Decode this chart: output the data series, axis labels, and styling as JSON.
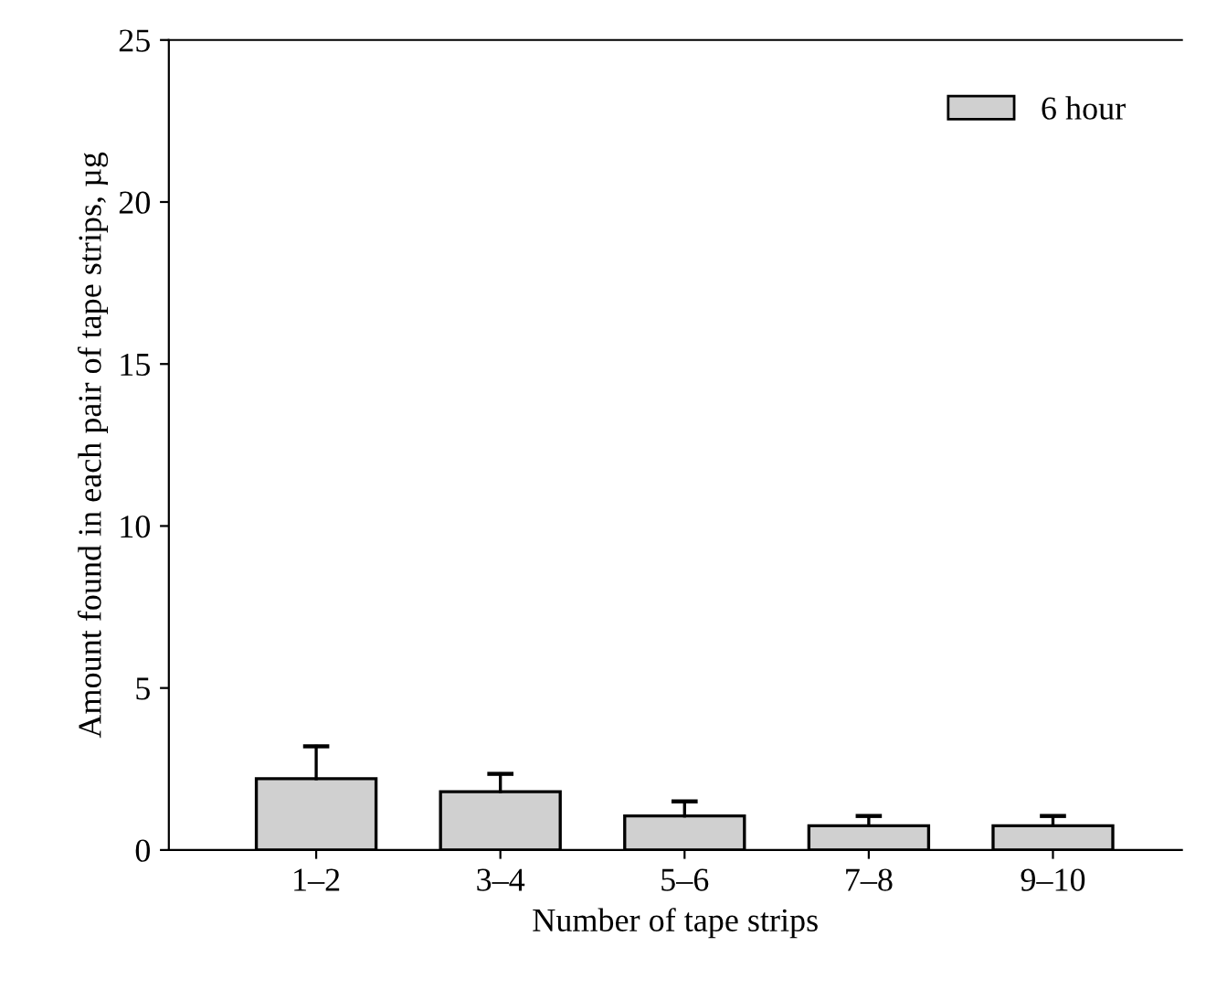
{
  "chart_data": {
    "type": "bar",
    "xlabel": "Number of tape strips",
    "ylabel": "Amount found in each pair of tape strips, µg",
    "categories": [
      "1–2",
      "3–4",
      "5–6",
      "7–8",
      "9–10"
    ],
    "series": [
      {
        "name": "6 hour",
        "color": "#d0d0d0",
        "values": [
          2.2,
          1.8,
          1.05,
          0.75,
          0.75
        ],
        "errors": [
          [
            2.2,
            3.2
          ],
          [
            1.8,
            2.35
          ],
          [
            1.05,
            1.5
          ],
          [
            0.75,
            1.05
          ],
          [
            0.75,
            1.05
          ]
        ]
      }
    ],
    "ylim": [
      0,
      25
    ],
    "yticks": [
      0,
      5,
      10,
      15,
      20,
      25
    ],
    "grid": false,
    "legend": "top right"
  }
}
